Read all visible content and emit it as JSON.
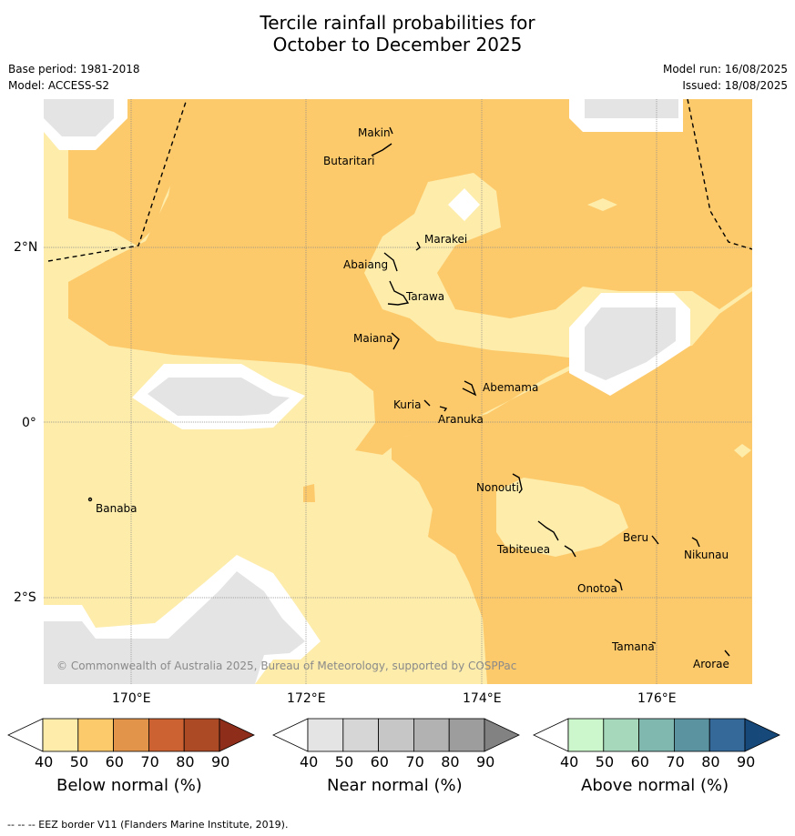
{
  "title": {
    "line1": "Tercile rainfall probabilities for",
    "line2": "October to December 2025"
  },
  "meta": {
    "base_period": "Base period: 1981-2018",
    "model": "Model: ACCESS-S2",
    "model_run": "Model run: 16/08/2025",
    "issued": "Issued: 18/08/2025"
  },
  "map": {
    "copyright": "© Commonwealth of Australia 2025, Bureau of Meteorology, supported by COSPPac",
    "lat_labels": [
      "2°N",
      "0°",
      "2°S"
    ],
    "lon_labels": [
      "170°E",
      "172°E",
      "174°E",
      "176°E"
    ],
    "islands": [
      "Makin",
      "Butaritari",
      "Marakei",
      "Abaiang",
      "Tarawa",
      "Maiana",
      "Abemama",
      "Kuria",
      "Aranuka",
      "Nonouti",
      "Banaba",
      "Beru",
      "Tabiteuea",
      "Nikunau",
      "Onotoa",
      "Tamana",
      "Arorae"
    ],
    "colors": {
      "ocean_bg": "#fdecaa",
      "below_50": "#fdca6b",
      "near_40": "#e4e4e4"
    }
  },
  "colorbars": [
    {
      "label": "Below normal (%)",
      "ticks": [
        "40",
        "50",
        "60",
        "70",
        "80",
        "90"
      ],
      "colors": [
        "#fdecaa",
        "#fdca6b",
        "#e2944a",
        "#cc6132",
        "#ad4a26",
        "#8e2d1a"
      ]
    },
    {
      "label": "Near normal (%)",
      "ticks": [
        "40",
        "50",
        "60",
        "70",
        "80",
        "90"
      ],
      "colors": [
        "#e4e4e4",
        "#d6d6d6",
        "#c6c6c6",
        "#b2b2b2",
        "#9d9d9d",
        "#828282"
      ]
    },
    {
      "label": "Above normal (%)",
      "ticks": [
        "40",
        "50",
        "60",
        "70",
        "80",
        "90"
      ],
      "colors": [
        "#ccf7cc",
        "#a6d9bc",
        "#80b8b0",
        "#5b93a1",
        "#35699a",
        "#16487a"
      ]
    }
  ],
  "footer": "--  --  -- EEZ border V11 (Flanders Marine Institute, 2019)."
}
